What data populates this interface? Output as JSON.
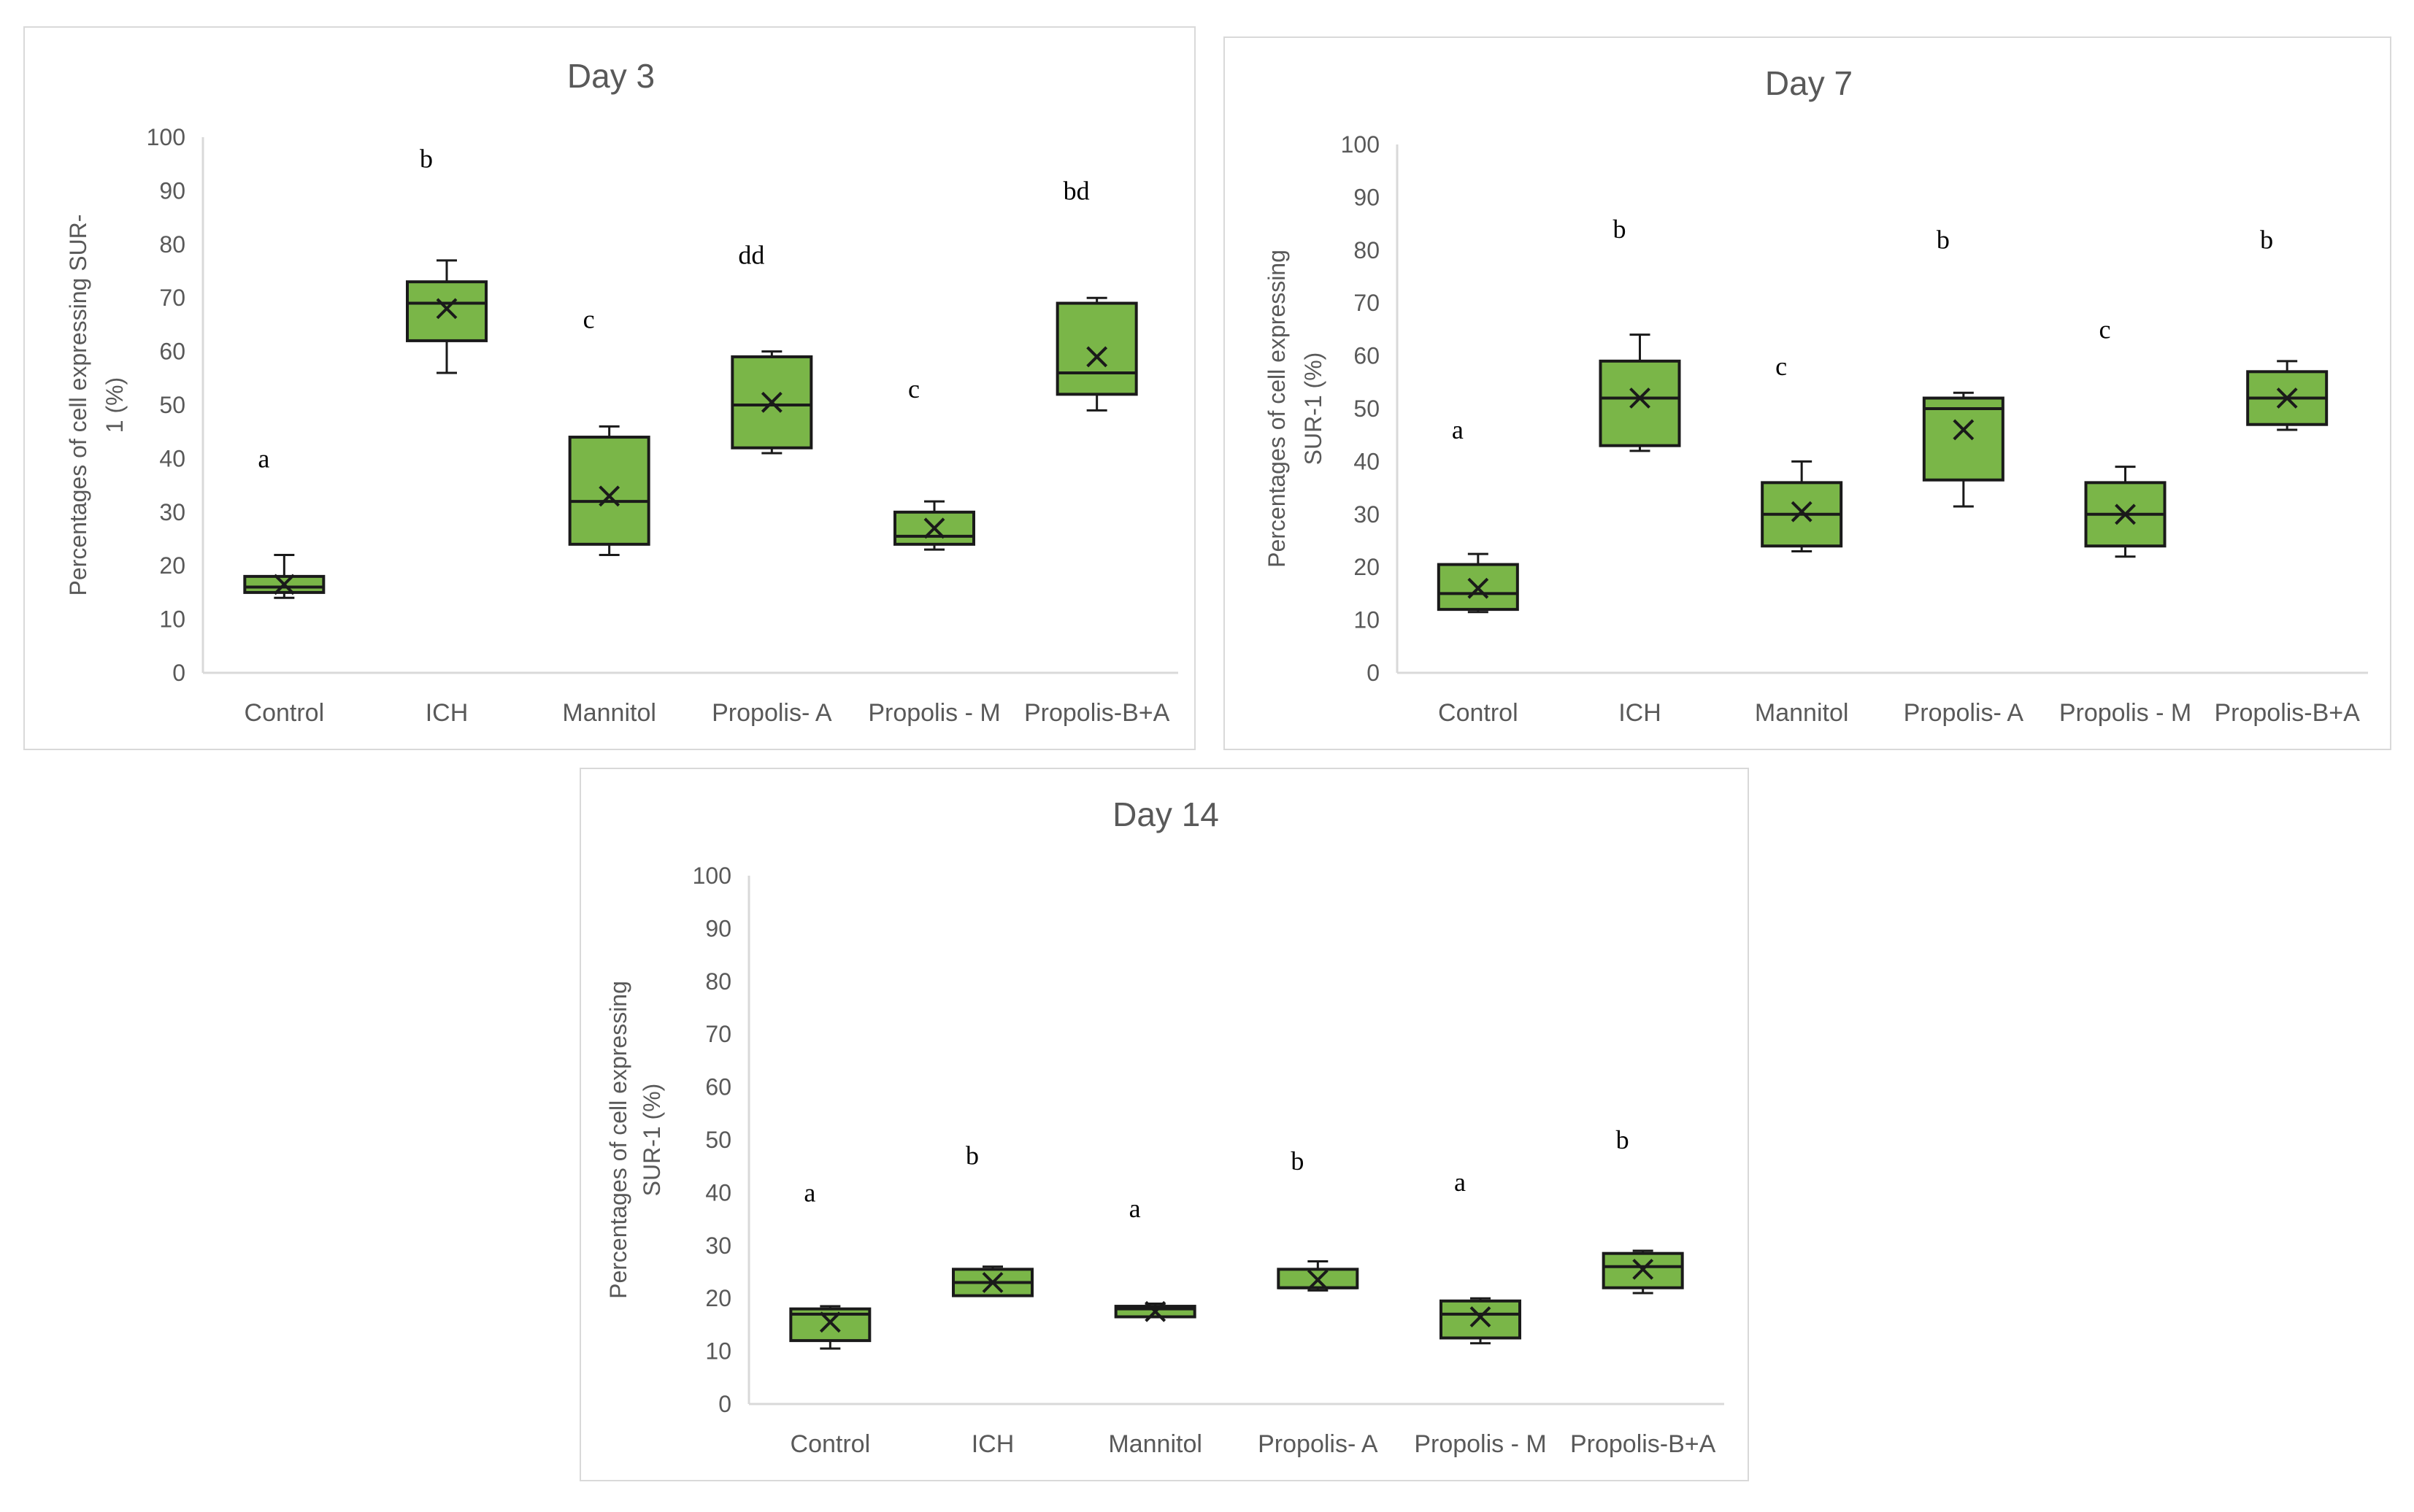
{
  "chart_data": [
    {
      "type": "box",
      "title": "Day 3",
      "ylabel": "Percentages of cell expressing SUR-1 (%)",
      "ylabel_lines": [
        "Percentages of cell expressing SUR-",
        "1 (%)"
      ],
      "ylim": [
        0,
        100
      ],
      "yticks": [
        0,
        10,
        20,
        30,
        40,
        50,
        60,
        70,
        80,
        90,
        100
      ],
      "categories": [
        "Control",
        "ICH",
        "Mannitol",
        "Propolis- A",
        "Propolis - M",
        "Propolis-B+A"
      ],
      "boxes": [
        {
          "min": 14,
          "q1": 15,
          "median": 16,
          "q3": 18,
          "max": 22,
          "mean": 16.5
        },
        {
          "min": 56,
          "q1": 62,
          "median": 69,
          "q3": 73,
          "max": 77,
          "mean": 68
        },
        {
          "min": 22,
          "q1": 24,
          "median": 32,
          "q3": 44,
          "max": 46,
          "mean": 33
        },
        {
          "min": 41,
          "q1": 42,
          "median": 50,
          "q3": 59,
          "max": 60,
          "mean": 50.5
        },
        {
          "min": 23,
          "q1": 24,
          "median": 25.5,
          "q3": 30,
          "max": 32,
          "mean": 27
        },
        {
          "min": 49,
          "q1": 52,
          "median": 56,
          "q3": 69,
          "max": 70,
          "mean": 59
        }
      ],
      "significance": [
        "a",
        "b",
        "c",
        "dd",
        "c",
        "bd"
      ],
      "significance_y": [
        40,
        96,
        66,
        78,
        53,
        90
      ],
      "colors": {
        "box": "#7ab648",
        "edge": "#1a1a1a",
        "axis": "#d9d9d9"
      }
    },
    {
      "type": "box",
      "title": "Day 7",
      "ylabel": "Percentages of cell expressing SUR-1 (%)",
      "ylabel_lines": [
        "Percentages of  cell expressing",
        "SUR-1 (%)"
      ],
      "ylim": [
        0,
        100
      ],
      "yticks": [
        0,
        10,
        20,
        30,
        40,
        50,
        60,
        70,
        80,
        90,
        100
      ],
      "categories": [
        "Control",
        "ICH",
        "Mannitol",
        "Propolis- A",
        "Propolis - M",
        "Propolis-B+A"
      ],
      "boxes": [
        {
          "min": 11.5,
          "q1": 12,
          "median": 15,
          "q3": 20.5,
          "max": 22.5,
          "mean": 16
        },
        {
          "min": 42,
          "q1": 43,
          "median": 52,
          "q3": 59,
          "max": 64,
          "mean": 52
        },
        {
          "min": 23,
          "q1": 24,
          "median": 30,
          "q3": 36,
          "max": 40,
          "mean": 30.5
        },
        {
          "min": 31.5,
          "q1": 36.5,
          "median": 50,
          "q3": 52,
          "max": 53,
          "mean": 46
        },
        {
          "min": 22,
          "q1": 24,
          "median": 30,
          "q3": 36,
          "max": 39,
          "mean": 30
        },
        {
          "min": 46,
          "q1": 47,
          "median": 52,
          "q3": 57,
          "max": 59,
          "mean": 52
        }
      ],
      "significance": [
        "a",
        "b",
        "c",
        "b",
        "c",
        "b"
      ],
      "significance_y": [
        46,
        84,
        58,
        82,
        65,
        82
      ],
      "colors": {
        "box": "#7ab648",
        "edge": "#1a1a1a",
        "axis": "#d9d9d9"
      }
    },
    {
      "type": "box",
      "title": "Day 14",
      "ylabel": "Percentages of cell expressing SUR-1 (%)",
      "ylabel_lines": [
        "Percentages  of cell expressing",
        "SUR-1 (%)"
      ],
      "ylim": [
        0,
        100
      ],
      "yticks": [
        0,
        10,
        20,
        30,
        40,
        50,
        60,
        70,
        80,
        90,
        100
      ],
      "categories": [
        "Control",
        "ICH",
        "Mannitol",
        "Propolis- A",
        "Propolis - M",
        "Propolis-B+A"
      ],
      "boxes": [
        {
          "min": 10.5,
          "q1": 12,
          "median": 17,
          "q3": 18,
          "max": 18.5,
          "mean": 15.5
        },
        {
          "min": 20.5,
          "q1": 20.5,
          "median": 23,
          "q3": 25.5,
          "max": 26,
          "mean": 23
        },
        {
          "min": 16.5,
          "q1": 16.5,
          "median": 18,
          "q3": 18.5,
          "max": 19,
          "mean": 17.5
        },
        {
          "min": 21.5,
          "q1": 22,
          "median": 22,
          "q3": 25.5,
          "max": 27,
          "mean": 23.5
        },
        {
          "min": 11.5,
          "q1": 12.5,
          "median": 17,
          "q3": 19.5,
          "max": 20,
          "mean": 16.5
        },
        {
          "min": 21,
          "q1": 22,
          "median": 26,
          "q3": 28.5,
          "max": 29,
          "mean": 25.5
        }
      ],
      "significance": [
        "a",
        "b",
        "a",
        "b",
        "a",
        "b"
      ],
      "significance_y": [
        40,
        47,
        37,
        46,
        42,
        50
      ],
      "colors": {
        "box": "#7ab648",
        "edge": "#1a1a1a",
        "axis": "#d9d9d9"
      }
    }
  ]
}
